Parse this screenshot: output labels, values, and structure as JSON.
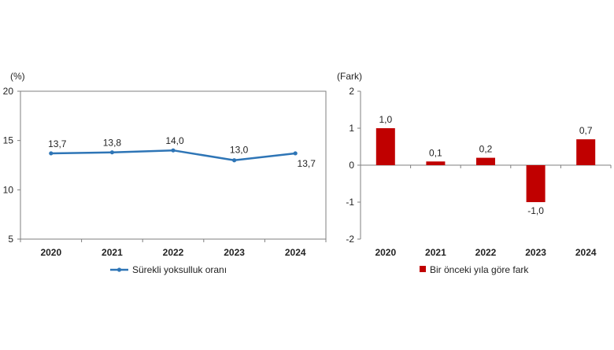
{
  "colors": {
    "line": "#2E75B6",
    "bar": "#C00000",
    "axis": "#7f7f7f",
    "text": "#222222"
  },
  "chart_data": [
    {
      "type": "line",
      "title": "",
      "unit_label": "(%)",
      "xlabel": "",
      "ylabel": "",
      "categories": [
        "2020",
        "2021",
        "2022",
        "2023",
        "2024"
      ],
      "series": [
        {
          "name": "Sürekli yoksulluk oranı",
          "values": [
            13.7,
            13.8,
            14.0,
            13.0,
            13.7
          ],
          "labels": [
            "13,7",
            "13,8",
            "14,0",
            "13,0",
            "13,7"
          ]
        }
      ],
      "ylim": [
        5,
        20
      ],
      "yticks": [
        5,
        10,
        15,
        20
      ],
      "ytick_labels": [
        "5",
        "10",
        "15",
        "20"
      ],
      "grid": false,
      "legend_position": "bottom"
    },
    {
      "type": "bar",
      "title": "",
      "unit_label": "(Fark)",
      "xlabel": "",
      "ylabel": "",
      "categories": [
        "2020",
        "2021",
        "2022",
        "2023",
        "2024"
      ],
      "series": [
        {
          "name": "Bir önceki yıla göre fark",
          "values": [
            1.0,
            0.1,
            0.2,
            -1.0,
            0.7
          ],
          "labels": [
            "1,0",
            "0,1",
            "0,2",
            "-1,0",
            "0,7"
          ]
        }
      ],
      "ylim": [
        -2,
        2
      ],
      "yticks": [
        -2,
        -1,
        0,
        1,
        2
      ],
      "ytick_labels": [
        "-2",
        "-1",
        "0",
        "1",
        "2"
      ],
      "grid": false,
      "legend_position": "bottom"
    }
  ]
}
